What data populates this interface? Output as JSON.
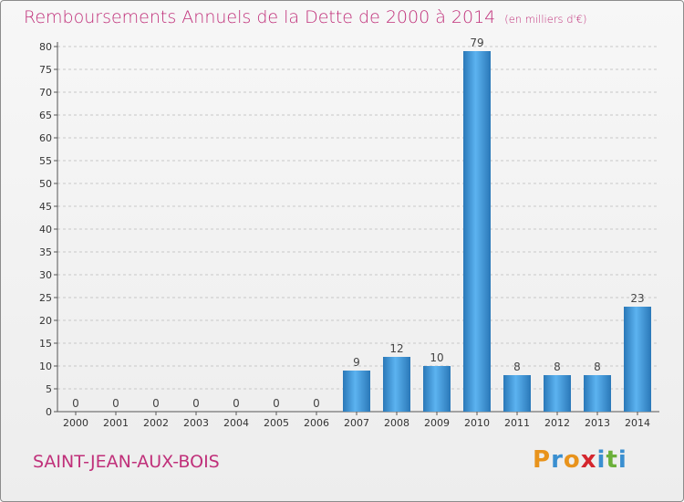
{
  "title": "Remboursements Annuels de la Dette de 2000 à 2014",
  "subtitle": "(en milliers d'€)",
  "city": "SAINT-JEAN-AUX-BOIS",
  "logo": {
    "letters": [
      "P",
      "r",
      "o",
      "x",
      "i",
      "t",
      "i"
    ],
    "colors": [
      "#e8931c",
      "#3a8fd0",
      "#e8931c",
      "#d4262e",
      "#3a8fd0",
      "#6bb03a",
      "#3a8fd0"
    ]
  },
  "colors": {
    "title": "#c0307a",
    "bar": "#3a8fd0",
    "bar_light": "#5cb3f0",
    "bar_dark": "#2a78b8"
  },
  "chart_data": {
    "type": "bar",
    "title": "Remboursements Annuels de la Dette de 2000 à 2014",
    "categories": [
      "2000",
      "2001",
      "2002",
      "2003",
      "2004",
      "2005",
      "2006",
      "2007",
      "2008",
      "2009",
      "2010",
      "2011",
      "2012",
      "2013",
      "2014"
    ],
    "values": [
      0,
      0,
      0,
      0,
      0,
      0,
      0,
      9,
      12,
      10,
      79,
      8,
      8,
      8,
      23
    ],
    "ylim": [
      0,
      80
    ],
    "yticks": [
      0,
      5,
      10,
      15,
      20,
      25,
      30,
      35,
      40,
      45,
      50,
      55,
      60,
      65,
      70,
      75,
      80
    ],
    "grid": "horizontal-dashed"
  }
}
